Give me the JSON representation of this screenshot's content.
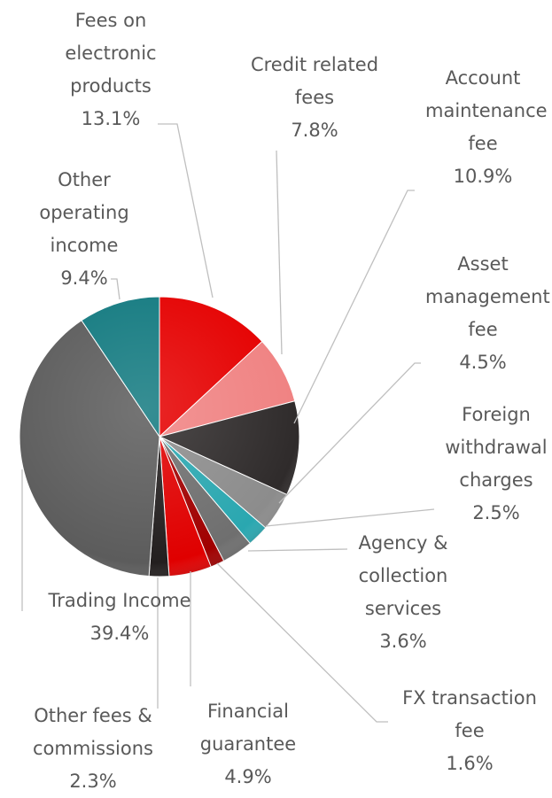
{
  "chart_data": {
    "type": "pie",
    "categories": [
      "Fees on electronic products",
      "Credit related fees",
      "Account maintenance fee",
      "Asset management fee",
      "Foreign withdrawal charges",
      "Agency & collection services",
      "FX transaction fee",
      "Financial guarantee",
      "Other fees & commissions",
      "Trading Income",
      "Other operating income"
    ],
    "values": [
      13.1,
      7.8,
      10.9,
      4.5,
      2.5,
      3.6,
      1.6,
      4.9,
      2.3,
      39.4,
      9.4
    ],
    "value_labels": [
      "13.1%",
      "7.8%",
      "10.9%",
      "4.5%",
      "2.5%",
      "3.6%",
      "1.6%",
      "4.9%",
      "2.3%",
      "39.4%",
      "9.4%"
    ],
    "colors": [
      "#e50000",
      "#f08282",
      "#2f2b2b",
      "#8c8c8c",
      "#2aa7b0",
      "#6f6f6f",
      "#a00000",
      "#e00000",
      "#231f1f",
      "#5c5c5c",
      "#137a80"
    ]
  }
}
